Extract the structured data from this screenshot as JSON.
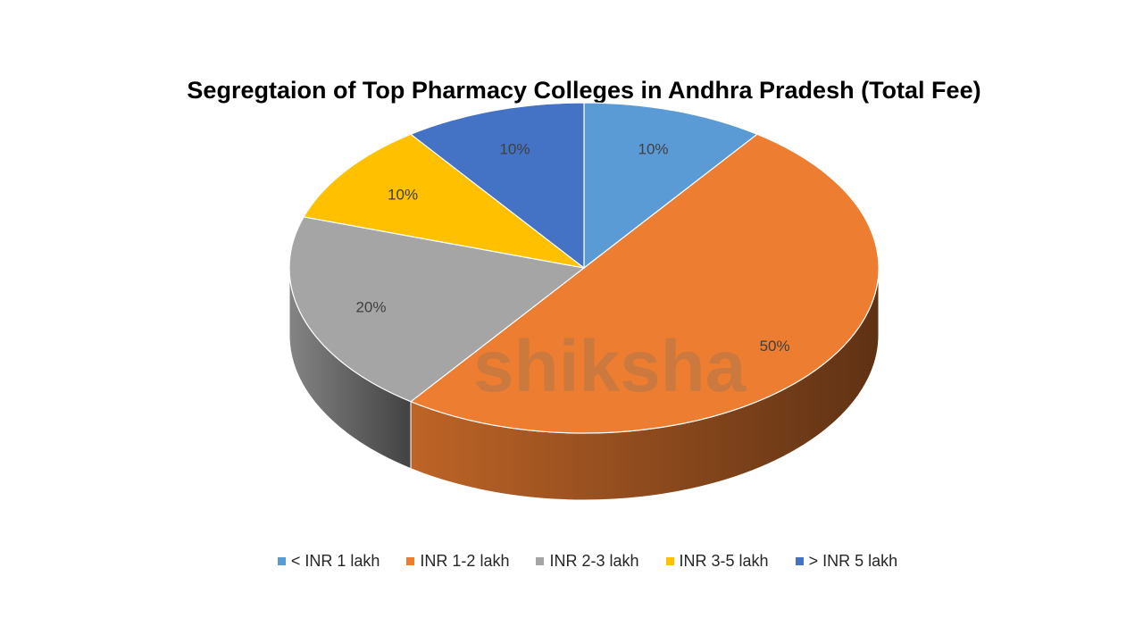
{
  "chart_data": {
    "type": "pie",
    "style": "3d",
    "title": "Segregtaion of Top Pharmacy Colleges in Andhra Pradesh (Total Fee)",
    "categories": [
      "< INR 1 lakh",
      "INR 1-2 lakh",
      "INR 2-3 lakh",
      "INR 3-5 lakh",
      "> INR 5 lakh"
    ],
    "values": [
      10,
      50,
      20,
      10,
      10
    ],
    "data_labels": [
      "10%",
      "50%",
      "20%",
      "10%",
      "10%"
    ],
    "colors": [
      "#5B9BD5",
      "#ED7D31",
      "#A5A5A5",
      "#FFC000",
      "#4472C4"
    ],
    "legend_placement": "bottom"
  },
  "watermark": "shiksha"
}
